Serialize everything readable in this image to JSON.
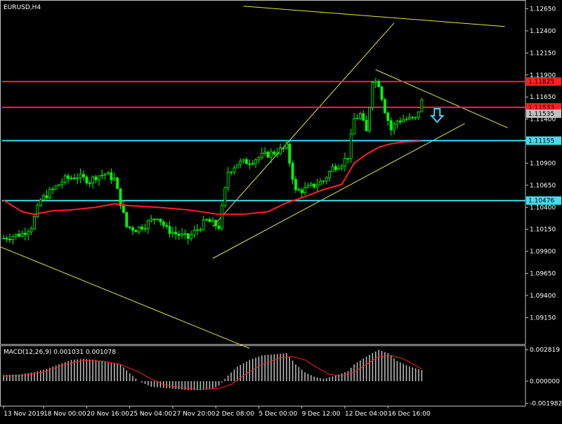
{
  "symbol_label": "EURUSD,H4",
  "macd_label": "MACD(12,26,9) 0.001031 0.001078",
  "colors": {
    "background": "#000000",
    "axis": "#c0c0c0",
    "text": "#ffffff",
    "grid": "#303030",
    "candle": "#00ff00",
    "ma_line": "#ff2020",
    "trend_line": "#e6e64c",
    "h_red": "#ff2020",
    "h_cyan": "#40e0f0",
    "arrow": "#40d0ff",
    "macd_hist": "#c0c0c0",
    "macd_signal": "#ff2020",
    "price_tag_red_bg": "#ff2020",
    "price_tag_cyan_bg": "#40e0f0"
  },
  "chart_data": [
    {
      "type": "candlestick",
      "title": "EURUSD,H4",
      "price_axis_ticks": [
        "1.12650",
        "1.12400",
        "1.12150",
        "1.11900",
        "1.11650",
        "1.11400",
        "1.11155",
        "1.10900",
        "1.10650",
        "1.10400",
        "1.10150",
        "1.09900",
        "1.09650",
        "1.09400",
        "1.09150"
      ],
      "ylim": [
        1.0885,
        1.1275
      ],
      "x_ticks": [
        "13 Nov 2019",
        "18 Nov 00:00",
        "20 Nov 16:00",
        "25 Nov 04:00",
        "27 Nov 20:00",
        "2 Dec 08:00",
        "5 Dec 00:00",
        "9 Dec 12:00",
        "12 Dec 04:00",
        "16 Dec 16:00"
      ],
      "bars_count": 137,
      "close_path": [
        [
          0,
          1.1005
        ],
        [
          6,
          1.101
        ],
        [
          9,
          1.1018
        ],
        [
          12,
          1.1048
        ],
        [
          16,
          1.106
        ],
        [
          20,
          1.1072
        ],
        [
          24,
          1.1075
        ],
        [
          28,
          1.107
        ],
        [
          30,
          1.1075
        ],
        [
          33,
          1.1078
        ],
        [
          36,
          1.1072
        ],
        [
          40,
          1.1018
        ],
        [
          43,
          1.1015
        ],
        [
          46,
          1.102
        ],
        [
          50,
          1.103
        ],
        [
          53,
          1.1015
        ],
        [
          56,
          1.101
        ],
        [
          60,
          1.1005
        ],
        [
          63,
          1.1015
        ],
        [
          66,
          1.1025
        ],
        [
          70,
          1.1018
        ],
        [
          73,
          1.108
        ],
        [
          76,
          1.109
        ],
        [
          80,
          1.1092
        ],
        [
          84,
          1.1098
        ],
        [
          88,
          1.1102
        ],
        [
          92,
          1.1108
        ],
        [
          95,
          1.1058
        ],
        [
          98,
          1.106
        ],
        [
          101,
          1.1065
        ],
        [
          104,
          1.107
        ],
        [
          107,
          1.1085
        ],
        [
          110,
          1.109
        ],
        [
          112,
          1.1098
        ],
        [
          114,
          1.114
        ],
        [
          116,
          1.1145
        ],
        [
          118,
          1.1125
        ],
        [
          120,
          1.1185
        ],
        [
          122,
          1.118
        ],
        [
          124,
          1.115
        ],
        [
          126,
          1.1128
        ],
        [
          128,
          1.1138
        ],
        [
          131,
          1.114
        ],
        [
          134,
          1.114
        ],
        [
          136,
          1.116
        ]
      ],
      "moving_average": [
        [
          0,
          1.1048
        ],
        [
          6,
          1.1035
        ],
        [
          10,
          1.1032
        ],
        [
          16,
          1.1036
        ],
        [
          22,
          1.1037
        ],
        [
          30,
          1.104
        ],
        [
          36,
          1.1044
        ],
        [
          40,
          1.1042
        ],
        [
          50,
          1.104
        ],
        [
          60,
          1.1037
        ],
        [
          70,
          1.1032
        ],
        [
          78,
          1.1032
        ],
        [
          86,
          1.1035
        ],
        [
          92,
          1.1045
        ],
        [
          98,
          1.1052
        ],
        [
          104,
          1.106
        ],
        [
          110,
          1.1066
        ],
        [
          114,
          1.109
        ],
        [
          118,
          1.11
        ],
        [
          122,
          1.1108
        ],
        [
          126,
          1.1112
        ],
        [
          130,
          1.1114
        ],
        [
          136,
          1.1115
        ]
      ],
      "horizontal_lines": [
        {
          "price": 1.11825,
          "label": "1.11825",
          "color": "h_red"
        },
        {
          "price": 1.11533,
          "label": "1.11533",
          "color": "h_red"
        },
        {
          "price": 1.11155,
          "label": "1.11155",
          "color": "h_cyan"
        },
        {
          "price": 1.10476,
          "label": "1.10476",
          "color": "h_cyan"
        }
      ],
      "current_price_label": "1.11535",
      "trend_lines": [
        {
          "from": [
            -1,
            1.0995
          ],
          "to": [
            80,
            1.088
          ]
        },
        {
          "from": [
            78,
            1.1268
          ],
          "to": [
            163,
            1.1245
          ]
        },
        {
          "from": [
            68,
            1.0982
          ],
          "to": [
            150,
            1.1135
          ]
        },
        {
          "from": [
            68,
            1.1018
          ],
          "to": [
            127,
            1.1249
          ]
        },
        {
          "from": [
            121,
            1.1196
          ],
          "to": [
            164,
            1.113
          ]
        }
      ],
      "arrow": {
        "direction": "down",
        "bar": 141,
        "price": 1.115
      }
    },
    {
      "type": "bar",
      "title": "MACD(12,26,9) 0.001031 0.001078",
      "y_ticks": [
        "0.002819",
        "0.000000",
        "-0.001982"
      ],
      "ylim": [
        -0.0022,
        0.0032
      ],
      "histogram": [
        [
          0,
          0.00055
        ],
        [
          5,
          0.0006
        ],
        [
          10,
          0.0008
        ],
        [
          14,
          0.0011
        ],
        [
          18,
          0.0015
        ],
        [
          22,
          0.0019
        ],
        [
          26,
          0.002
        ],
        [
          30,
          0.0019
        ],
        [
          34,
          0.00165
        ],
        [
          38,
          0.0015
        ],
        [
          41,
          0.0007
        ],
        [
          44,
          0.0
        ],
        [
          48,
          -0.0005
        ],
        [
          52,
          -0.0006
        ],
        [
          56,
          -0.0007
        ],
        [
          60,
          -0.0008
        ],
        [
          64,
          -0.0008
        ],
        [
          68,
          -0.0007
        ],
        [
          70,
          -0.0004
        ],
        [
          73,
          0.0005
        ],
        [
          76,
          0.0013
        ],
        [
          80,
          0.0019
        ],
        [
          84,
          0.0023
        ],
        [
          88,
          0.0024
        ],
        [
          92,
          0.0025
        ],
        [
          95,
          0.0015
        ],
        [
          98,
          0.0008
        ],
        [
          101,
          0.0004
        ],
        [
          104,
          0.0002
        ],
        [
          108,
          0.0005
        ],
        [
          112,
          0.0009
        ],
        [
          114,
          0.0015
        ],
        [
          118,
          0.0022
        ],
        [
          122,
          0.0028
        ],
        [
          125,
          0.0025
        ],
        [
          128,
          0.0018
        ],
        [
          132,
          0.0013
        ],
        [
          136,
          0.001
        ]
      ],
      "signal": [
        [
          0,
          0.00045
        ],
        [
          8,
          0.00055
        ],
        [
          14,
          0.0009
        ],
        [
          20,
          0.0015
        ],
        [
          26,
          0.00185
        ],
        [
          32,
          0.0018
        ],
        [
          38,
          0.0015
        ],
        [
          44,
          0.0008
        ],
        [
          48,
          0.0002
        ],
        [
          52,
          -0.0003
        ],
        [
          58,
          -0.0006
        ],
        [
          64,
          -0.00075
        ],
        [
          70,
          -0.00065
        ],
        [
          74,
          -0.0003
        ],
        [
          78,
          0.0005
        ],
        [
          84,
          0.0015
        ],
        [
          90,
          0.0021
        ],
        [
          94,
          0.0022
        ],
        [
          98,
          0.0019
        ],
        [
          102,
          0.0012
        ],
        [
          106,
          0.0006
        ],
        [
          110,
          0.0005
        ],
        [
          114,
          0.0008
        ],
        [
          118,
          0.0015
        ],
        [
          122,
          0.0022
        ],
        [
          126,
          0.0023
        ],
        [
          130,
          0.002
        ],
        [
          134,
          0.0014
        ],
        [
          136,
          0.00108
        ]
      ]
    }
  ]
}
